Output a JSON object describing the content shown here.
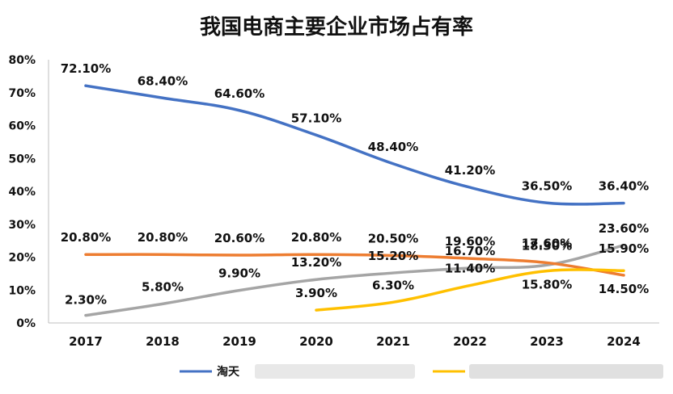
{
  "chart_data": {
    "type": "line",
    "title": "我国电商主要企业市场占有率",
    "xlabel": "",
    "ylabel": "",
    "ylim": [
      0,
      80
    ],
    "y_ticks": [
      "0%",
      "10%",
      "20%",
      "30%",
      "40%",
      "50%",
      "60%",
      "70%",
      "80%"
    ],
    "categories": [
      "2017",
      "2018",
      "2019",
      "2020",
      "2021",
      "2022",
      "2023",
      "2024"
    ],
    "grid": false,
    "legend_position": "bottom",
    "series": [
      {
        "name": "淘天",
        "color": "#4472C4",
        "values": [
          72.1,
          68.4,
          64.6,
          57.1,
          48.4,
          41.2,
          36.5,
          36.4
        ],
        "labels": [
          "72.10%",
          "68.40%",
          "64.60%",
          "57.10%",
          "48.40%",
          "41.20%",
          "36.50%",
          "36.40%"
        ]
      },
      {
        "name": "",
        "color": "#ED7D31",
        "values": [
          20.8,
          20.8,
          20.6,
          20.8,
          20.5,
          19.6,
          18.3,
          14.5
        ],
        "labels": [
          "20.80%",
          "20.80%",
          "20.60%",
          "20.80%",
          "20.50%",
          "19.60%",
          "18.30%",
          "14.50%"
        ]
      },
      {
        "name": "",
        "color": "#A5A5A5",
        "values": [
          2.3,
          5.8,
          9.9,
          13.2,
          15.2,
          16.7,
          17.6,
          23.6
        ],
        "labels": [
          "2.30%",
          "5.80%",
          "9.90%",
          "13.20%",
          "15.20%",
          "16.70%",
          "17.60%",
          "23.60%"
        ]
      },
      {
        "name": "",
        "color": "#FFC000",
        "values": [
          null,
          null,
          null,
          3.9,
          6.3,
          11.4,
          15.8,
          15.9
        ],
        "labels": [
          null,
          null,
          null,
          "3.90%",
          "6.30%",
          "11.40%",
          "15.80%",
          "15.90%"
        ]
      }
    ]
  }
}
